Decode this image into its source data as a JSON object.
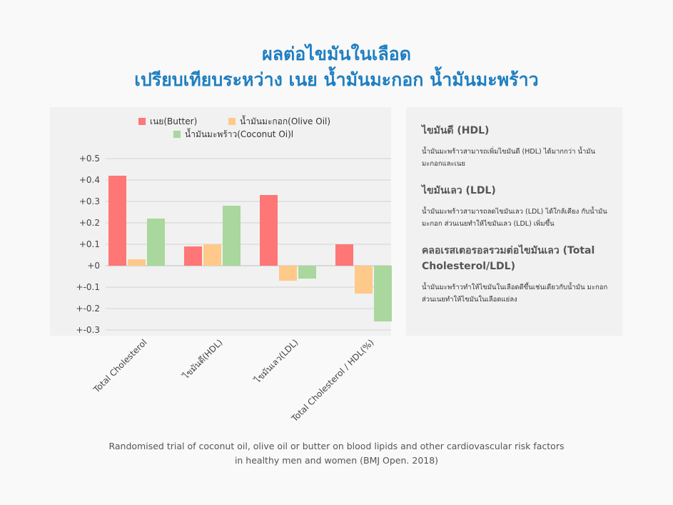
{
  "title": {
    "line1": "ผลต่อไขมันในเลือด",
    "line2": "เปรียบเทียบระหว่าง เนย น้ำมันมะกอก น้ำมันมะพร้าว"
  },
  "chart_data": {
    "type": "bar",
    "categories": [
      "Total Cholesterol",
      "ไขมันดี(HDL)",
      "ไขมันเลว(LDL)",
      "Total Cholesterol / HDL(%)"
    ],
    "series": [
      {
        "name": "เนย(Butter)",
        "color": "#ff7676",
        "values": [
          0.42,
          0.09,
          0.33,
          0.1
        ]
      },
      {
        "name": "น้ำมันมะกอก(Olive Oil)",
        "color": "#ffc98a",
        "values": [
          0.03,
          0.1,
          -0.07,
          -0.13
        ]
      },
      {
        "name": "น้ำมันมะพร้าว(Coconut Oi)l",
        "color": "#a9d79d",
        "values": [
          0.22,
          0.28,
          -0.06,
          -0.26
        ]
      }
    ],
    "ylim": [
      -0.3,
      0.5
    ],
    "yticks": [
      0.5,
      0.4,
      0.3,
      0.2,
      0.1,
      0,
      -0.1,
      -0.2,
      -0.3
    ],
    "ytick_labels": [
      "+0.5",
      "+0.4",
      "+0.3",
      "+0.2",
      "+0.1",
      "+0",
      "+-0.1",
      "+-0.2",
      "+-0.3"
    ],
    "grid": true,
    "legend": "top"
  },
  "info": [
    {
      "heading": "ไขมันดี (HDL)",
      "text": "น้ำมันมะพร้าวสามารถเพิ่มไขมันดี (HDL) ได้มากกว่า น้ำมันมะกอกและเนย"
    },
    {
      "heading": "ไขมันเลว (LDL)",
      "text": "น้ำมันมะพร้าวสามารถลดไขมันเลว (LDL) ได้ใกล้เคียง กับน้ำมันมะกอก ส่วนเนยทำให้ไขมันเลว (LDL) เพิ่มขึ้น"
    },
    {
      "heading": "คลอเรสเตอรอลรวมต่อไขมันเลว (Total Cholesterol/LDL)",
      "text": "น้ำมันมะพร้าวทำให้ไขมันในเลือดดีขึ้นเช่นเดียวกับน้ำมัน มะกอก ส่วนเนยทำให้ไขมันในเลือดแย่ลง"
    }
  ],
  "caption": {
    "line1": "Randomised trial of coconut oil, olive oil or butter on blood lipids and other cardiovascular risk factors",
    "line2": "in healthy men and women (BMJ Open. 2018)"
  }
}
